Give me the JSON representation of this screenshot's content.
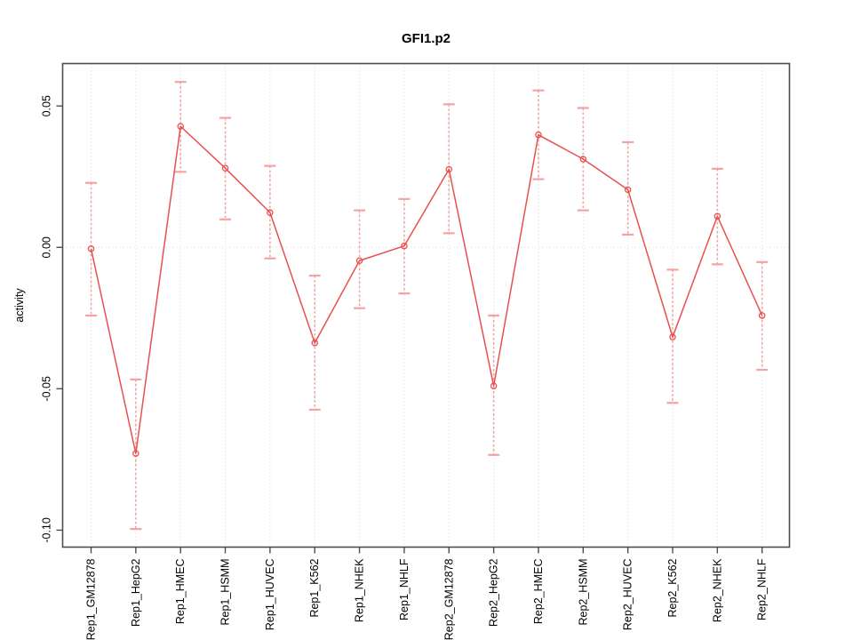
{
  "figure": {
    "kind": "r-statistical-plot",
    "background": "#ffffff"
  },
  "colors": {
    "series_line": "#e8504e",
    "marker_stroke": "#e8504e",
    "error_bar": "#f5a3a2",
    "grid": "#d6d6d6",
    "axis": "#4d4d4d",
    "text": "#000000"
  },
  "chart_data": {
    "type": "line",
    "title": "GFI1.p2",
    "xlabel": "",
    "ylabel": "activity",
    "legend": "none",
    "grid": "vertical dotted gridline per category plus dotted horizontal line at zero",
    "marker": "open-circle",
    "error_bars": true,
    "ylim": [
      -0.106,
      0.065
    ],
    "ytick_values": [
      0.05,
      0.0,
      -0.05,
      -0.1
    ],
    "ytick_labels": [
      "0.05",
      "0.00",
      "-0.05",
      "-0.10"
    ],
    "categories": [
      "Rep1_GM12878",
      "Rep1_HepG2",
      "Rep1_HMEC",
      "Rep1_HSMM",
      "Rep1_HUVEC",
      "Rep1_K562",
      "Rep1_NHEK",
      "Rep1_NHLF",
      "Rep2_GM12878",
      "Rep2_HepG2",
      "Rep2_HMEC",
      "Rep2_HSMM",
      "Rep2_HUVEC",
      "Rep2_K562",
      "Rep2_NHEK",
      "Rep2_NHLF"
    ],
    "series": [
      {
        "name": "activity",
        "values": [
          -0.0005,
          -0.0729,
          0.0428,
          0.028,
          0.0123,
          -0.0338,
          -0.0047,
          0.0005,
          0.0276,
          -0.049,
          0.0398,
          0.0312,
          0.0204,
          -0.0317,
          0.011,
          -0.0241
        ],
        "upper": [
          0.0228,
          -0.0467,
          0.0585,
          0.0458,
          0.0288,
          -0.01,
          0.0131,
          0.0171,
          0.0506,
          -0.0241,
          0.0555,
          0.0493,
          0.0372,
          -0.0079,
          0.0278,
          -0.0052
        ],
        "lower": [
          -0.0241,
          -0.0996,
          0.0267,
          0.0099,
          -0.0039,
          -0.0574,
          -0.0215,
          -0.0163,
          0.005,
          -0.0734,
          0.0241,
          0.0131,
          0.0045,
          -0.055,
          -0.006,
          -0.0433
        ]
      }
    ]
  }
}
